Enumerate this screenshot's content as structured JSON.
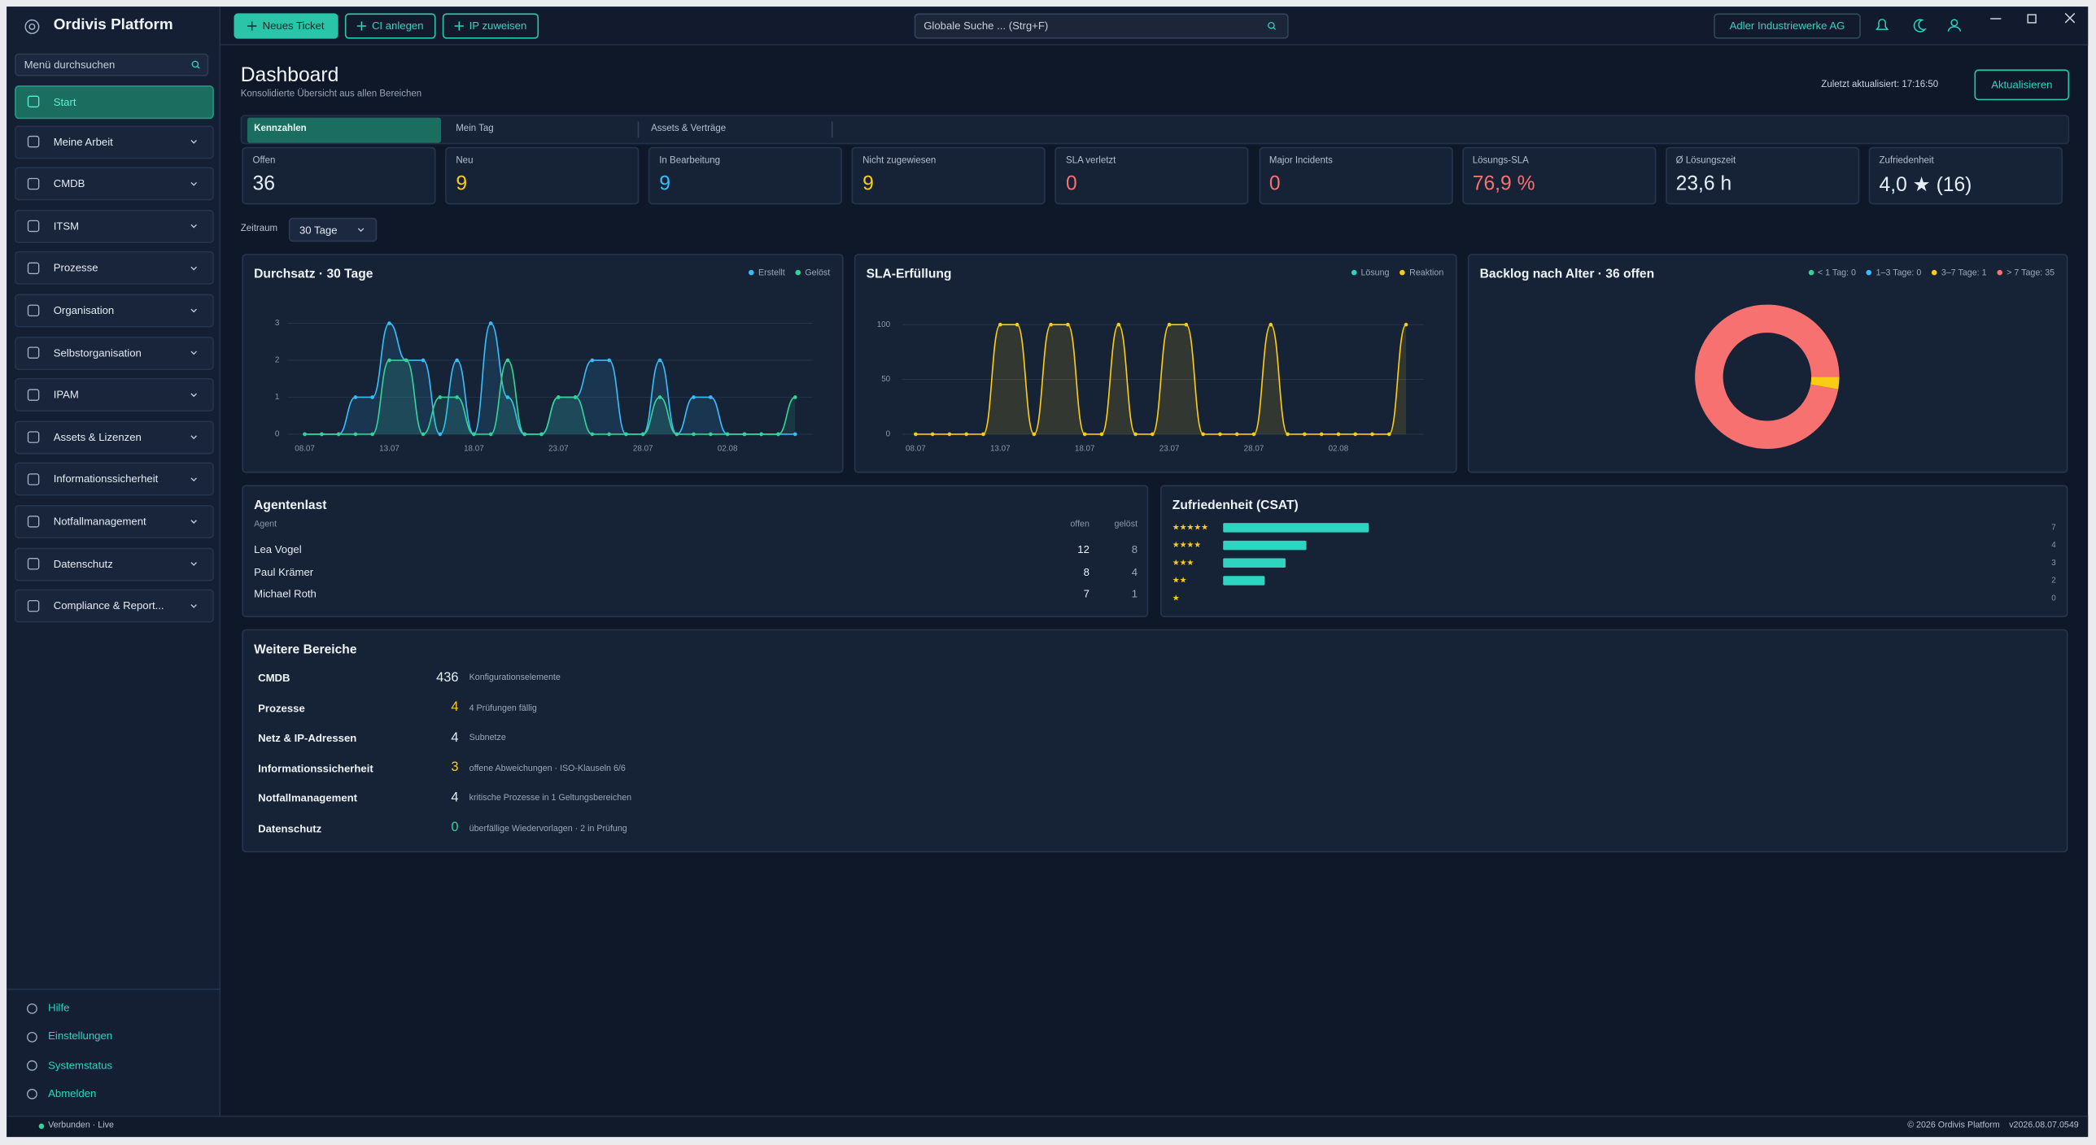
{
  "header": {
    "app_name": "Ordivis Platform",
    "actions": [
      "Neues Ticket",
      "CI anlegen",
      "IP zuweisen"
    ],
    "search_placeholder": "Globale Suche ... (Strg+F)",
    "tenant": "Adler Industriewerke AG"
  },
  "sidebar": {
    "search_placeholder": "Menü durchsuchen",
    "active": "Start",
    "items": [
      "Start",
      "Meine Arbeit",
      "CMDB",
      "ITSM",
      "Prozesse",
      "Organisation",
      "Selbstorganisation",
      "IPAM",
      "Assets & Lizenzen",
      "Informationssicherheit",
      "Notfallmanagement",
      "Datenschutz",
      "Compliance & Report..."
    ],
    "footer": [
      "Hilfe",
      "Einstellungen",
      "Systemstatus",
      "Abmelden"
    ]
  },
  "page": {
    "title": "Dashboard",
    "subtitle": "Konsolidierte Übersicht aus allen Bereichen",
    "last_updated": "Zuletzt aktualisiert: 17:16:50",
    "refresh": "Aktualisieren",
    "tabs": [
      "Kennzahlen",
      "Mein Tag",
      "Assets & Verträge"
    ],
    "active_tab": "Kennzahlen",
    "period_label": "Zeitraum",
    "period": "30 Tage"
  },
  "kpis": [
    {
      "label": "Offen",
      "value": 36,
      "color": "#e6edf5"
    },
    {
      "label": "Neu",
      "value": 9,
      "color": "#facc15"
    },
    {
      "label": "In Bearbeitung",
      "value": 9,
      "color": "#38bdf8"
    },
    {
      "label": "Nicht zugewiesen",
      "value": 9,
      "color": "#facc15"
    },
    {
      "label": "SLA verletzt",
      "value": 0,
      "color": "#f87171"
    },
    {
      "label": "Major Incidents",
      "value": 0,
      "color": "#f87171"
    },
    {
      "label": "Lösungs-SLA",
      "value": "76,9 %",
      "color": "#f87171"
    },
    {
      "label": "Ø Lösungszeit",
      "value": "23,6 h",
      "color": "#e6edf5"
    },
    {
      "label": "Zufriedenheit",
      "value": "4,0 ★ (16)",
      "color": "#e6edf5"
    }
  ],
  "agent_load": {
    "title": "Agentenlast",
    "columns": [
      "Agent",
      "offen",
      "gelöst"
    ],
    "rows": [
      [
        "Lea Vogel",
        12,
        8
      ],
      [
        "Paul Krämer",
        8,
        4
      ],
      [
        "Michael Roth",
        7,
        1
      ]
    ]
  },
  "areas": {
    "title": "Weitere Bereiche",
    "rows": [
      {
        "name": "CMDB",
        "value": 436,
        "color": "#e6edf5",
        "detail": "Konfigurationselemente"
      },
      {
        "name": "Prozesse",
        "value": 4,
        "color": "#facc15",
        "detail": "4 Prüfungen fällig"
      },
      {
        "name": "Netz & IP-Adressen",
        "value": 4,
        "color": "#e6edf5",
        "detail": "Subnetze"
      },
      {
        "name": "Informationssicherheit",
        "value": 3,
        "color": "#facc15",
        "detail": "offene Abweichungen · ISO-Klauseln 6/6"
      },
      {
        "name": "Notfallmanagement",
        "value": 4,
        "color": "#e6edf5",
        "detail": "kritische Prozesse in 1 Geltungsbereichen"
      },
      {
        "name": "Datenschutz",
        "value": 0,
        "color": "#34d399",
        "detail": "überfällige Wiedervorlagen · 2 in Prüfung"
      }
    ]
  },
  "status_bar": {
    "connection": "Verbunden · Live",
    "copyright": "© 2026 Ordivis Platform",
    "version": "v2026.08.07.0549"
  },
  "chart_data": [
    {
      "type": "line",
      "title": "Durchsatz · 30 Tage",
      "categories": [
        "08.07",
        null,
        null,
        null,
        null,
        "13.07",
        null,
        null,
        null,
        null,
        "18.07",
        null,
        null,
        null,
        null,
        "23.07",
        null,
        null,
        null,
        null,
        "28.07",
        null,
        null,
        null,
        null,
        "02.08",
        null,
        null,
        null,
        null
      ],
      "series": [
        {
          "name": "Erstellt",
          "color": "#38bdf8",
          "values": [
            0,
            0,
            0,
            1,
            1,
            3,
            2,
            2,
            0,
            2,
            0,
            3,
            1,
            0,
            0,
            1,
            1,
            2,
            2,
            0,
            0,
            2,
            0,
            1,
            1,
            0,
            0,
            0,
            0,
            0
          ]
        },
        {
          "name": "Gelöst",
          "color": "#34d399",
          "values": [
            0,
            0,
            0,
            0,
            0,
            2,
            2,
            0,
            1,
            1,
            0,
            0,
            2,
            0,
            0,
            1,
            1,
            0,
            0,
            0,
            0,
            1,
            0,
            0,
            0,
            0,
            0,
            0,
            0,
            1
          ]
        }
      ],
      "ylim": [
        0,
        3
      ],
      "yticks": [
        0,
        1,
        2,
        3
      ],
      "grid": true,
      "legend": "top-right"
    },
    {
      "type": "line",
      "title": "SLA-Erfüllung",
      "categories": [
        "08.07",
        null,
        null,
        null,
        null,
        "13.07",
        null,
        null,
        null,
        null,
        "18.07",
        null,
        null,
        null,
        null,
        "23.07",
        null,
        null,
        null,
        null,
        "28.07",
        null,
        null,
        null,
        null,
        "02.08",
        null,
        null,
        null,
        null
      ],
      "series": [
        {
          "name": "Lösung",
          "color": "#2dd4bf",
          "values": [
            null,
            null,
            null,
            null,
            null,
            null,
            null,
            null,
            null,
            null,
            null,
            null,
            null,
            null,
            null,
            null,
            null,
            null,
            null,
            null,
            null,
            null,
            null,
            null,
            null,
            null,
            null,
            null,
            null,
            null
          ]
        },
        {
          "name": "Reaktion",
          "color": "#facc15",
          "values": [
            0,
            0,
            0,
            0,
            0,
            100,
            100,
            0,
            100,
            100,
            0,
            0,
            100,
            0,
            0,
            100,
            100,
            0,
            0,
            0,
            0,
            100,
            0,
            0,
            0,
            0,
            0,
            0,
            0,
            100
          ]
        }
      ],
      "ylim": [
        0,
        100
      ],
      "yticks": [
        0,
        50,
        100
      ],
      "grid": true,
      "legend": "top-right"
    },
    {
      "type": "donut",
      "title": "Backlog nach Alter · 36 offen",
      "labels": [
        "< 1 Tag: 0",
        "1–3 Tage: 0",
        "3–7 Tage: 1",
        "> 7 Tage: 35"
      ],
      "values": [
        0,
        0,
        1,
        35
      ],
      "colors": [
        "#34d399",
        "#38bdf8",
        "#facc15",
        "#f87171"
      ],
      "legend": "top-right"
    },
    {
      "type": "hbar",
      "title": "Zufriedenheit (CSAT)",
      "categories": [
        "★★★★★",
        "★★★★",
        "★★★",
        "★★",
        "★"
      ],
      "values": [
        7,
        4,
        3,
        2,
        0
      ],
      "color": "#2dd4bf"
    }
  ]
}
